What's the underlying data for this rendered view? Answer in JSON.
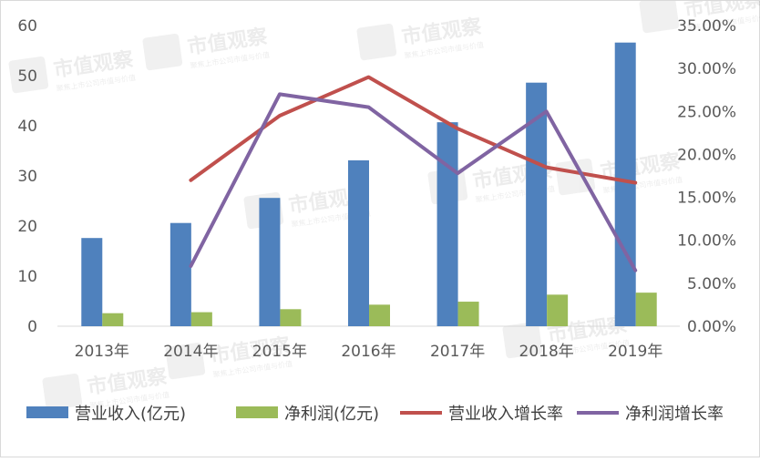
{
  "chart_data": {
    "type": "bar",
    "categories": [
      "2013年",
      "2014年",
      "2015年",
      "2016年",
      "2017年",
      "2018年",
      "2019年"
    ],
    "series": [
      {
        "name": "营业收入(亿元)",
        "kind": "bar",
        "axis": "left",
        "color": "#4f81bd",
        "values": [
          17.6,
          20.6,
          25.6,
          33.1,
          40.7,
          48.6,
          56.6
        ]
      },
      {
        "name": "净利润(亿元)",
        "kind": "bar",
        "axis": "left",
        "color": "#9bbb59",
        "values": [
          2.6,
          2.8,
          3.4,
          4.3,
          4.9,
          6.3,
          6.7
        ]
      },
      {
        "name": "营业收入增长率",
        "kind": "line",
        "axis": "right",
        "color": "#c0504d",
        "values": [
          null,
          0.17,
          0.245,
          0.29,
          0.23,
          0.185,
          0.167
        ]
      },
      {
        "name": "净利润增长率",
        "kind": "line",
        "axis": "right",
        "color": "#8064a2",
        "values": [
          null,
          0.07,
          0.27,
          0.255,
          0.178,
          0.25,
          0.065
        ]
      }
    ],
    "ylim": [
      0,
      60
    ],
    "yticks": [
      "0",
      "10",
      "20",
      "30",
      "40",
      "50",
      "60"
    ],
    "y2lim": [
      0,
      0.35
    ],
    "y2ticks": [
      "0.00%",
      "5.00%",
      "10.00%",
      "15.00%",
      "20.00%",
      "25.00%",
      "30.00%",
      "35.00%"
    ],
    "grid": false,
    "legend_position": "bottom"
  },
  "watermark": {
    "title": "市值观察",
    "subtitle": "聚焦上市公司市值与价值"
  }
}
